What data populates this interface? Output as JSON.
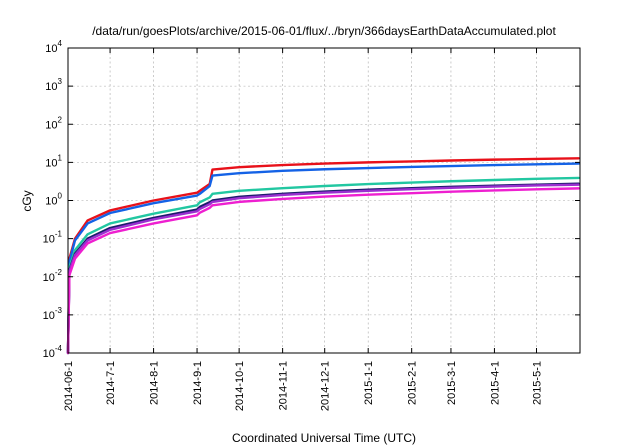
{
  "chart_data": {
    "type": "line",
    "title": "/data/run/goesPlots/archive/2015-06-01/flux/../bryn/366daysEarthDataAccumulated.plot",
    "xlabel": "Coordinated Universal Time (UTC)",
    "ylabel": "cGy",
    "y_scale": "log",
    "ylim": [
      0.0001,
      10000
    ],
    "xlim": [
      "2014-06-01",
      "2015-06-01"
    ],
    "grid": true,
    "x_ticks": [
      {
        "date": "2014-06-01",
        "label": "2014-06-1"
      },
      {
        "date": "2014-07-01",
        "label": "2014-7-1"
      },
      {
        "date": "2014-08-01",
        "label": "2014-8-1"
      },
      {
        "date": "2014-09-01",
        "label": "2014-9-1"
      },
      {
        "date": "2014-10-01",
        "label": "2014-10-1"
      },
      {
        "date": "2014-11-01",
        "label": "2014-11-1"
      },
      {
        "date": "2014-12-01",
        "label": "2014-12-1"
      },
      {
        "date": "2015-01-01",
        "label": "2015-1-1"
      },
      {
        "date": "2015-02-01",
        "label": "2015-2-1"
      },
      {
        "date": "2015-03-01",
        "label": "2015-3-1"
      },
      {
        "date": "2015-04-01",
        "label": "2015-4-1"
      },
      {
        "date": "2015-05-01",
        "label": "2015-5-1"
      }
    ],
    "y_ticks": [
      {
        "value": 0.0001,
        "base": "10",
        "exp": "-4"
      },
      {
        "value": 0.001,
        "base": "10",
        "exp": "-3"
      },
      {
        "value": 0.01,
        "base": "10",
        "exp": "-2"
      },
      {
        "value": 0.1,
        "base": "10",
        "exp": "-1"
      },
      {
        "value": 1,
        "base": "10",
        "exp": "0"
      },
      {
        "value": 10,
        "base": "10",
        "exp": "1"
      },
      {
        "value": 100,
        "base": "10",
        "exp": "2"
      },
      {
        "value": 1000,
        "base": "10",
        "exp": "3"
      },
      {
        "value": 10000,
        "base": "10",
        "exp": "4"
      }
    ],
    "series": [
      {
        "color": "#e8111a",
        "points": [
          [
            "2014-06-01",
            0.0001
          ],
          [
            "2014-06-02",
            0.03
          ],
          [
            "2014-06-06",
            0.1
          ],
          [
            "2014-06-15",
            0.3
          ],
          [
            "2014-07-01",
            0.55
          ],
          [
            "2014-08-01",
            1.0
          ],
          [
            "2014-09-01",
            1.6
          ],
          [
            "2014-09-03",
            1.8
          ],
          [
            "2014-09-10",
            2.7
          ],
          [
            "2014-09-12",
            6.5
          ],
          [
            "2014-10-01",
            7.5
          ],
          [
            "2014-11-01",
            8.5
          ],
          [
            "2014-12-01",
            9.3
          ],
          [
            "2015-01-01",
            10.0
          ],
          [
            "2015-02-01",
            10.6
          ],
          [
            "2015-03-01",
            11.2
          ],
          [
            "2015-04-01",
            11.8
          ],
          [
            "2015-05-01",
            12.3
          ],
          [
            "2015-05-31",
            12.8
          ]
        ]
      },
      {
        "color": "#1462e6",
        "points": [
          [
            "2014-06-01",
            0.0001
          ],
          [
            "2014-06-02",
            0.025
          ],
          [
            "2014-06-06",
            0.09
          ],
          [
            "2014-06-15",
            0.25
          ],
          [
            "2014-07-01",
            0.47
          ],
          [
            "2014-08-01",
            0.85
          ],
          [
            "2014-09-01",
            1.35
          ],
          [
            "2014-09-03",
            1.5
          ],
          [
            "2014-09-10",
            2.4
          ],
          [
            "2014-09-12",
            4.5
          ],
          [
            "2014-10-01",
            5.2
          ],
          [
            "2014-11-01",
            6.0
          ],
          [
            "2014-12-01",
            6.6
          ],
          [
            "2015-01-01",
            7.1
          ],
          [
            "2015-02-01",
            7.6
          ],
          [
            "2015-03-01",
            8.0
          ],
          [
            "2015-04-01",
            8.5
          ],
          [
            "2015-05-01",
            8.9
          ],
          [
            "2015-05-31",
            9.3
          ]
        ]
      },
      {
        "color": "#22c7a1",
        "points": [
          [
            "2014-06-01",
            0.0001
          ],
          [
            "2014-06-02",
            0.018
          ],
          [
            "2014-06-06",
            0.05
          ],
          [
            "2014-06-15",
            0.13
          ],
          [
            "2014-07-01",
            0.25
          ],
          [
            "2014-08-01",
            0.45
          ],
          [
            "2014-09-01",
            0.75
          ],
          [
            "2014-09-03",
            0.9
          ],
          [
            "2014-09-10",
            1.2
          ],
          [
            "2014-09-12",
            1.5
          ],
          [
            "2014-10-01",
            1.8
          ],
          [
            "2014-11-01",
            2.1
          ],
          [
            "2014-12-01",
            2.4
          ],
          [
            "2015-01-01",
            2.7
          ],
          [
            "2015-02-01",
            2.95
          ],
          [
            "2015-03-01",
            3.2
          ],
          [
            "2015-04-01",
            3.45
          ],
          [
            "2015-05-01",
            3.7
          ],
          [
            "2015-05-31",
            3.9
          ]
        ]
      },
      {
        "color": "#1b1b6b",
        "points": [
          [
            "2014-06-01",
            0.0001
          ],
          [
            "2014-06-02",
            0.015
          ],
          [
            "2014-06-06",
            0.04
          ],
          [
            "2014-06-15",
            0.1
          ],
          [
            "2014-07-01",
            0.19
          ],
          [
            "2014-08-01",
            0.35
          ],
          [
            "2014-09-01",
            0.58
          ],
          [
            "2014-09-03",
            0.68
          ],
          [
            "2014-09-10",
            0.9
          ],
          [
            "2014-09-12",
            1.0
          ],
          [
            "2014-10-01",
            1.25
          ],
          [
            "2014-11-01",
            1.5
          ],
          [
            "2014-12-01",
            1.72
          ],
          [
            "2015-01-01",
            1.92
          ],
          [
            "2015-02-01",
            2.1
          ],
          [
            "2015-03-01",
            2.28
          ],
          [
            "2015-04-01",
            2.45
          ],
          [
            "2015-05-01",
            2.6
          ],
          [
            "2015-05-31",
            2.75
          ]
        ]
      },
      {
        "color": "#9a2fd0",
        "points": [
          [
            "2014-06-01",
            0.0001
          ],
          [
            "2014-06-02",
            0.014
          ],
          [
            "2014-06-06",
            0.037
          ],
          [
            "2014-06-15",
            0.09
          ],
          [
            "2014-07-01",
            0.17
          ],
          [
            "2014-08-01",
            0.32
          ],
          [
            "2014-09-01",
            0.52
          ],
          [
            "2014-09-03",
            0.6
          ],
          [
            "2014-09-10",
            0.8
          ],
          [
            "2014-09-12",
            0.92
          ],
          [
            "2014-10-01",
            1.15
          ],
          [
            "2014-11-01",
            1.4
          ],
          [
            "2014-12-01",
            1.6
          ],
          [
            "2015-01-01",
            1.8
          ],
          [
            "2015-02-01",
            1.98
          ],
          [
            "2015-03-01",
            2.15
          ],
          [
            "2015-04-01",
            2.32
          ],
          [
            "2015-05-01",
            2.48
          ],
          [
            "2015-05-31",
            2.6
          ]
        ]
      },
      {
        "color": "#ee1fd0",
        "points": [
          [
            "2014-06-01",
            0.0001
          ],
          [
            "2014-06-02",
            0.011
          ],
          [
            "2014-06-06",
            0.03
          ],
          [
            "2014-06-15",
            0.075
          ],
          [
            "2014-07-01",
            0.14
          ],
          [
            "2014-08-01",
            0.25
          ],
          [
            "2014-09-01",
            0.41
          ],
          [
            "2014-09-03",
            0.48
          ],
          [
            "2014-09-10",
            0.64
          ],
          [
            "2014-09-12",
            0.75
          ],
          [
            "2014-10-01",
            0.92
          ],
          [
            "2014-11-01",
            1.1
          ],
          [
            "2014-12-01",
            1.27
          ],
          [
            "2015-01-01",
            1.42
          ],
          [
            "2015-02-01",
            1.56
          ],
          [
            "2015-03-01",
            1.7
          ],
          [
            "2015-04-01",
            1.84
          ],
          [
            "2015-05-01",
            1.96
          ],
          [
            "2015-05-31",
            2.08
          ]
        ]
      }
    ]
  }
}
